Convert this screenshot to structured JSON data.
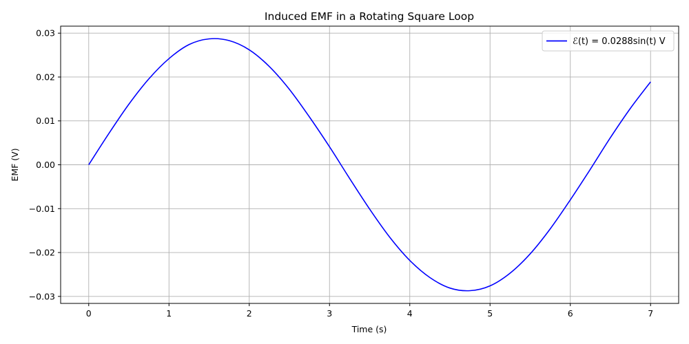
{
  "chart_data": {
    "type": "line",
    "title": "Induced EMF in a Rotating Square Loop",
    "xlabel": "Time (s)",
    "ylabel": "EMF (V)",
    "xlim": [
      -0.35,
      7.35
    ],
    "ylim": [
      -0.0316,
      0.0316
    ],
    "xticks": [
      0,
      1,
      2,
      3,
      4,
      5,
      6,
      7
    ],
    "xtick_labels": [
      "0",
      "1",
      "2",
      "3",
      "4",
      "5",
      "6",
      "7"
    ],
    "yticks": [
      -0.03,
      -0.02,
      -0.01,
      0.0,
      0.01,
      0.02,
      0.03
    ],
    "ytick_labels": [
      "−0.03",
      "−0.02",
      "−0.01",
      "0.00",
      "0.01",
      "0.02",
      "0.03"
    ],
    "grid": true,
    "legend_position": "top-right",
    "series": [
      {
        "name": "ℰ(t) = 0.0288sin(t) V",
        "color": "#0000ff",
        "x": [
          0.0,
          0.25,
          0.5,
          0.75,
          1.0,
          1.25,
          1.5,
          1.75,
          2.0,
          2.25,
          2.5,
          2.75,
          3.0,
          3.25,
          3.5,
          3.75,
          4.0,
          4.25,
          4.5,
          4.75,
          5.0,
          5.25,
          5.5,
          5.75,
          6.0,
          6.25,
          6.5,
          6.75,
          7.0
        ],
        "y": [
          0.0,
          0.0071,
          0.0138,
          0.0196,
          0.0242,
          0.0274,
          0.0287,
          0.0283,
          0.0262,
          0.0224,
          0.0172,
          0.0109,
          0.0041,
          -0.0031,
          -0.0101,
          -0.0165,
          -0.0218,
          -0.0257,
          -0.0281,
          -0.0287,
          -0.0276,
          -0.0247,
          -0.0203,
          -0.0146,
          -0.008,
          -0.001,
          0.0062,
          0.0129,
          0.0189
        ]
      }
    ]
  }
}
